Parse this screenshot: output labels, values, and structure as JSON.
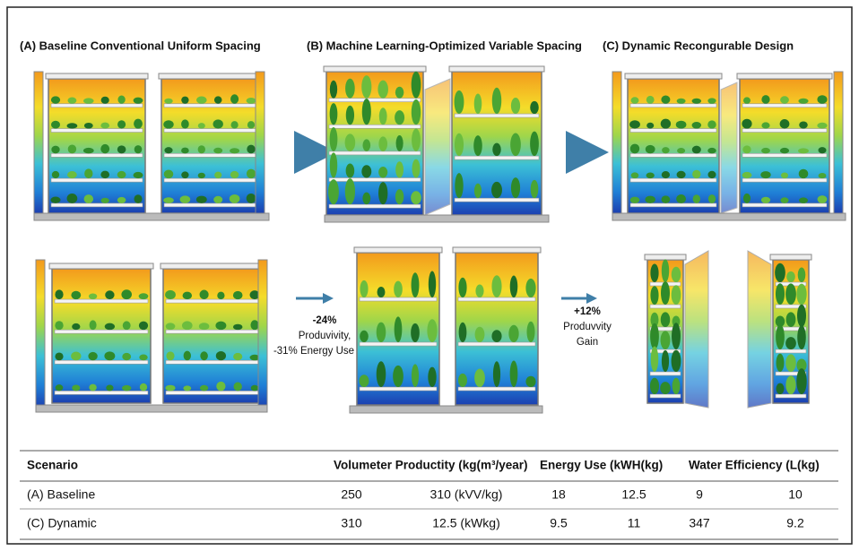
{
  "panels": {
    "a_title": "(A) Baseline Conventional Uniform Spacing",
    "b_title": "(B) Machine Learning-Optimized Variable Spacing",
    "c_title": "(C) Dynamic Recongurable Design"
  },
  "annotations": {
    "ml": [
      "-24%",
      "Produvivity,",
      "-31% Energy Use"
    ],
    "dynamic": [
      "+12%",
      "Produvvity",
      "Gain"
    ]
  },
  "table": {
    "header": [
      "Scenario",
      "Volumeter Productity (kg(m³/year)",
      "Energy Use (kWH(kg)",
      "Water Efficiency (L(kg)"
    ],
    "rows": [
      [
        "(A) Baseline",
        "250",
        "310 (kVV/kg)",
        "18",
        "12.5",
        "9",
        "10"
      ],
      [
        "(C) Dynamic",
        "310",
        "12.5 (kWkg)",
        "9.5",
        "11",
        "347",
        "9.2"
      ]
    ]
  }
}
